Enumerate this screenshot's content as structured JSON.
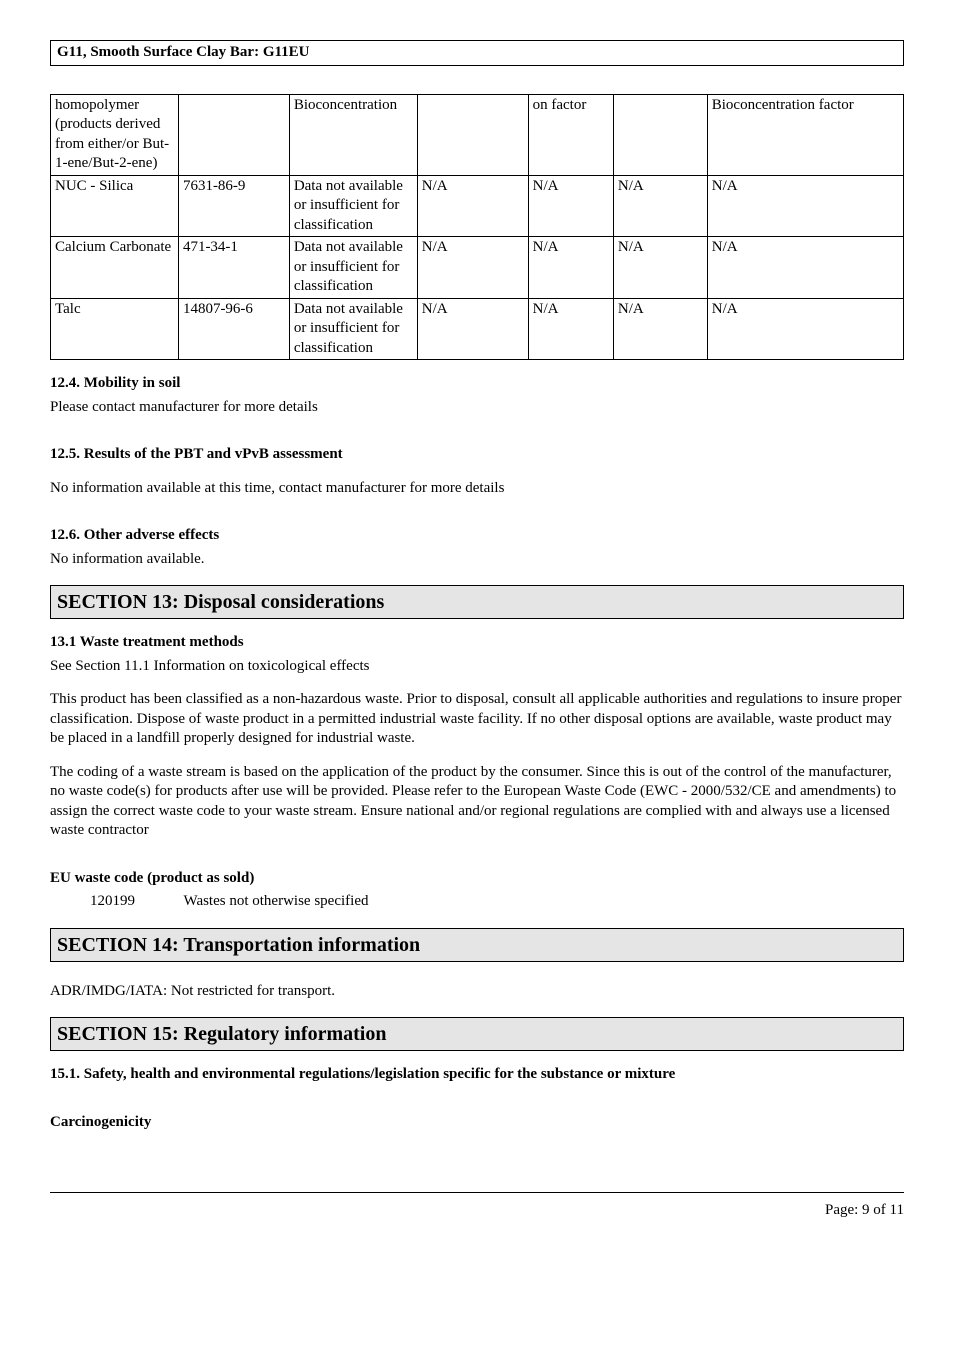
{
  "header": {
    "title": "G11, Smooth Surface Clay Bar: G11EU"
  },
  "table": {
    "rows": [
      {
        "c1": "homopolymer (products derived from either/or But-1-ene/But-2-ene)",
        "c2": "",
        "c3": "Bioconcentration",
        "c4": "",
        "c5": "on factor",
        "c6": "",
        "c7": "Bioconcentration factor"
      },
      {
        "c1": "NUC - Silica",
        "c2": "7631-86-9",
        "c3": "Data not available or insufficient for classification",
        "c4": "N/A",
        "c5": "N/A",
        "c6": "N/A",
        "c7": "N/A"
      },
      {
        "c1": "Calcium Carbonate",
        "c2": "471-34-1",
        "c3": "Data not available or insufficient for classification",
        "c4": "N/A",
        "c5": "N/A",
        "c6": "N/A",
        "c7": "N/A"
      },
      {
        "c1": "Talc",
        "c2": "14807-96-6",
        "c3": "Data not available or insufficient for classification",
        "c4": "N/A",
        "c5": "N/A",
        "c6": "N/A",
        "c7": "N/A"
      }
    ]
  },
  "s12_4": {
    "heading": "12.4. Mobility in soil",
    "text": "Please contact manufacturer for more details"
  },
  "s12_5": {
    "heading": "12.5. Results of the PBT and vPvB assessment",
    "text": "No information available at this time, contact manufacturer for more details"
  },
  "s12_6": {
    "heading": "12.6. Other adverse effects",
    "text": "No information available."
  },
  "s13": {
    "title": "SECTION 13: Disposal considerations",
    "sub_heading": "13.1 Waste treatment methods",
    "line1": "See Section 11.1 Information on toxicological effects",
    "para1": "This product has been classified as a non-hazardous waste.  Prior to disposal, consult all applicable authorities and regulations to insure proper classification.  Dispose of waste product in a permitted industrial waste facility.  If no other disposal options are available, waste product may be placed in a landfill properly designed for industrial waste.",
    "para2": "The coding of a waste stream is based on the application of the product by the consumer. Since this is out of the control of the manufacturer, no waste code(s) for products after use will be provided. Please refer to the European Waste Code (EWC - 2000/532/CE and amendments) to assign the correct waste code to your waste stream. Ensure national and/or regional regulations are complied with and always use a licensed waste contractor",
    "eu_heading": "EU waste code (product as sold)",
    "eu_code": "120199",
    "eu_desc": "Wastes not otherwise specified"
  },
  "s14": {
    "title": "SECTION 14: Transportation information",
    "text": "ADR/IMDG/IATA: Not restricted for transport."
  },
  "s15": {
    "title": "SECTION 15: Regulatory information",
    "sub_heading": "15.1. Safety, health and environmental regulations/legislation specific for the substance or mixture",
    "carc": "Carcinogenicity"
  },
  "footer": {
    "page": "Page: 9 of  11"
  }
}
